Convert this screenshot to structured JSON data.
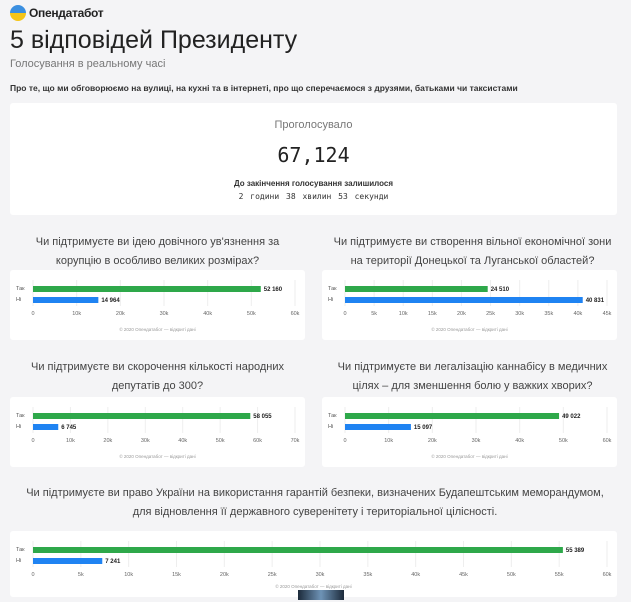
{
  "header": {
    "logo_text": "Опендатабот",
    "title": "5 відповідей Президенту",
    "subtitle": "Голосування в реальному часі",
    "description": "Про те, що ми обговорюємо на вулиці, на кухні та в інтернеті, про що сперечаємося з друзями, батьками чи таксистами"
  },
  "votes": {
    "label": "Проголосувало",
    "count": "67,124",
    "remaining_label": "До закінчення голосування залишилося",
    "remaining_time": "2 години 38 хвилин 53 секунди"
  },
  "colors": {
    "yes": "#2ea84a",
    "no": "#1f83f2"
  },
  "chart_data": [
    {
      "type": "bar",
      "orientation": "horizontal",
      "title": "Чи підтримуєте ви ідею довічного ув'язнення за корупцію в особливо великих розмірах?",
      "categories": [
        "Так",
        "Ні"
      ],
      "values": [
        52160,
        14964
      ],
      "value_labels": [
        "52 160",
        "14 964"
      ],
      "xlim": [
        0,
        60000
      ],
      "ticks": [
        "0",
        "10k",
        "20k",
        "30k",
        "40k",
        "50k",
        "60k"
      ],
      "footer": "© 2020 Опендатабот — відкриті дані"
    },
    {
      "type": "bar",
      "orientation": "horizontal",
      "title": "Чи підтримуєте ви створення вільної економічної зони на території Донецької та Луганської областей?",
      "categories": [
        "Так",
        "Ні"
      ],
      "values": [
        24510,
        40831
      ],
      "value_labels": [
        "24 510",
        "40 831"
      ],
      "xlim": [
        0,
        45000
      ],
      "ticks": [
        "0",
        "5k",
        "10k",
        "15k",
        "20k",
        "25k",
        "30k",
        "35k",
        "40k",
        "45k"
      ],
      "footer": "© 2020 Опендатабот — відкриті дані"
    },
    {
      "type": "bar",
      "orientation": "horizontal",
      "title": "Чи підтримуєте ви скорочення кількості народних депутатів до 300?",
      "categories": [
        "Так",
        "Ні"
      ],
      "values": [
        58055,
        6745
      ],
      "value_labels": [
        "58 055",
        "6 745"
      ],
      "xlim": [
        0,
        70000
      ],
      "ticks": [
        "0",
        "10k",
        "20k",
        "30k",
        "40k",
        "50k",
        "60k",
        "70k"
      ],
      "footer": "© 2020 Опендатабот — відкриті дані"
    },
    {
      "type": "bar",
      "orientation": "horizontal",
      "title": "Чи підтримуєте ви легалізацію каннабісу в медичних цілях – для зменшення болю у важких хворих?",
      "categories": [
        "Так",
        "Ні"
      ],
      "values": [
        49022,
        15097
      ],
      "value_labels": [
        "49 022",
        "15 097"
      ],
      "xlim": [
        0,
        60000
      ],
      "ticks": [
        "0",
        "10k",
        "20k",
        "30k",
        "40k",
        "50k",
        "60k"
      ],
      "footer": "© 2020 Опендатабот — відкриті дані"
    },
    {
      "type": "bar",
      "orientation": "horizontal",
      "title": "Чи підтримуєте ви право України на використання гарантій безпеки, визначених Будапештським меморандумом, для відновлення її державного суверенітету і територіальної цілісності.",
      "categories": [
        "Так",
        "Ні"
      ],
      "values": [
        55389,
        7241
      ],
      "value_labels": [
        "55 389",
        "7 241"
      ],
      "xlim": [
        0,
        60000
      ],
      "ticks": [
        "0",
        "5k",
        "10k",
        "15k",
        "20k",
        "25k",
        "30k",
        "35k",
        "40k",
        "45k",
        "50k",
        "55k",
        "60k"
      ],
      "footer": "© 2020 Опендатабот — відкриті дані"
    }
  ]
}
